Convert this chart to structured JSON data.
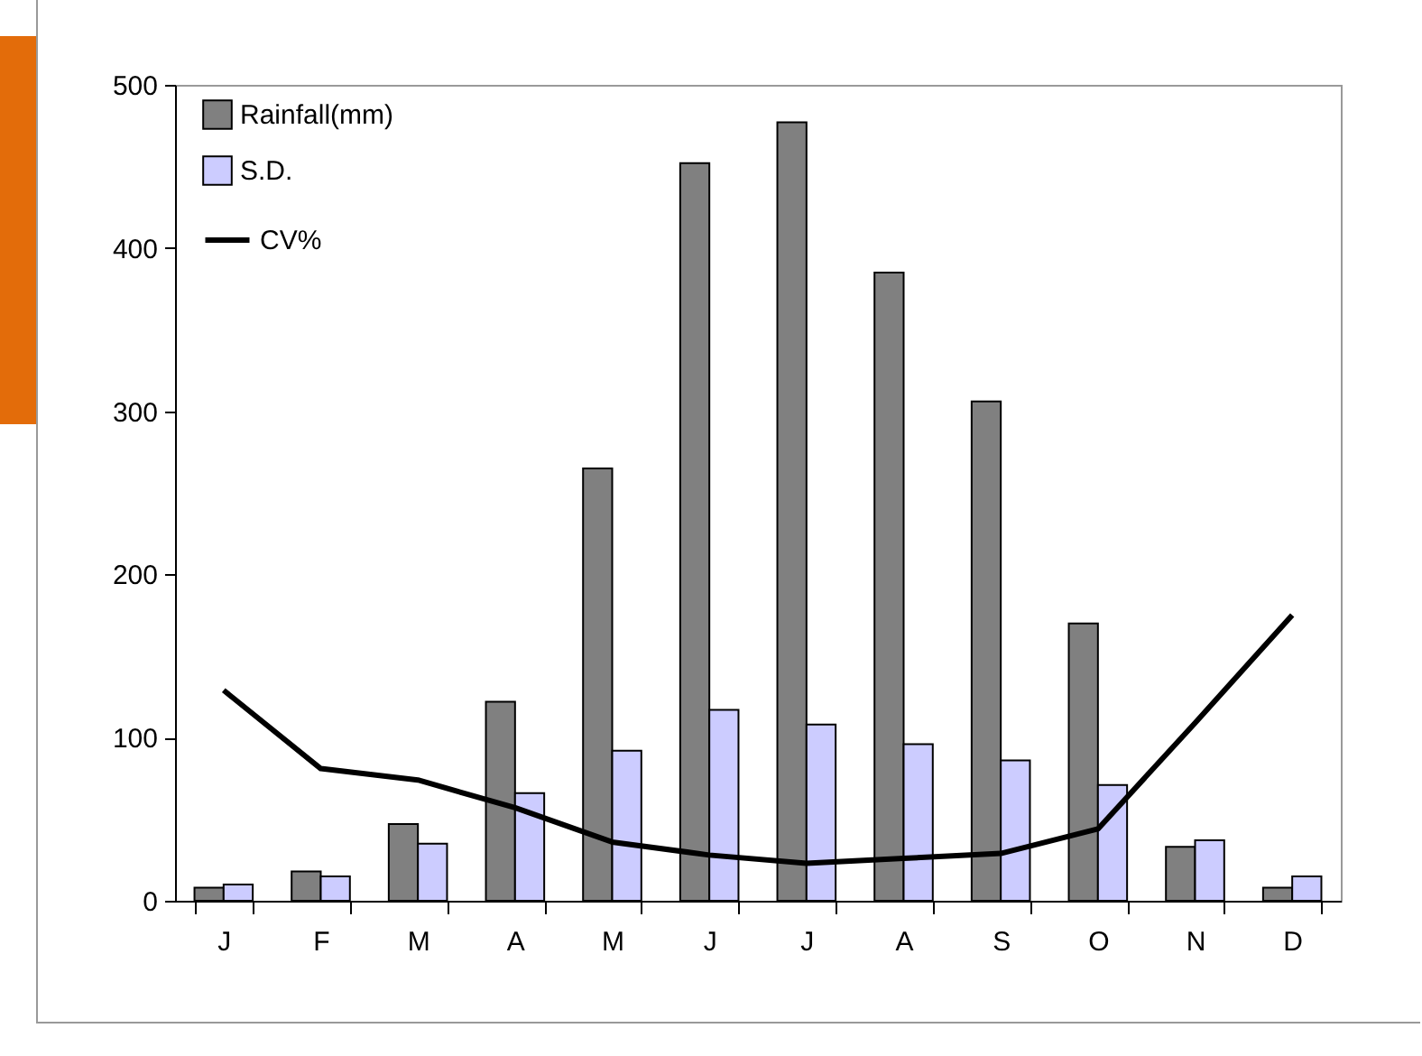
{
  "chart_data": {
    "type": "bar",
    "categories": [
      "J",
      "F",
      "M",
      "A",
      "M",
      "J",
      "J",
      "A",
      "S",
      "O",
      "N",
      "D"
    ],
    "series": [
      {
        "name": "Rainfall(mm)",
        "color": "#808080",
        "values": [
          8,
          18,
          47,
          122,
          265,
          452,
          477,
          385,
          306,
          170,
          33,
          8
        ]
      },
      {
        "name": "S.D.",
        "color": "#ccccff",
        "values": [
          10,
          15,
          35,
          66,
          92,
          117,
          108,
          96,
          86,
          71,
          37,
          15
        ]
      },
      {
        "name": "CV%",
        "type": "line",
        "color": "#000000",
        "values": [
          129,
          81,
          74,
          57,
          36,
          28,
          23,
          26,
          29,
          44,
          109,
          175
        ]
      }
    ],
    "ylim": [
      0,
      500
    ],
    "yticks": [
      0,
      100,
      200,
      300,
      400,
      500
    ],
    "grid": false,
    "legend": "top left",
    "marker": "none",
    "line_style": "solid"
  }
}
